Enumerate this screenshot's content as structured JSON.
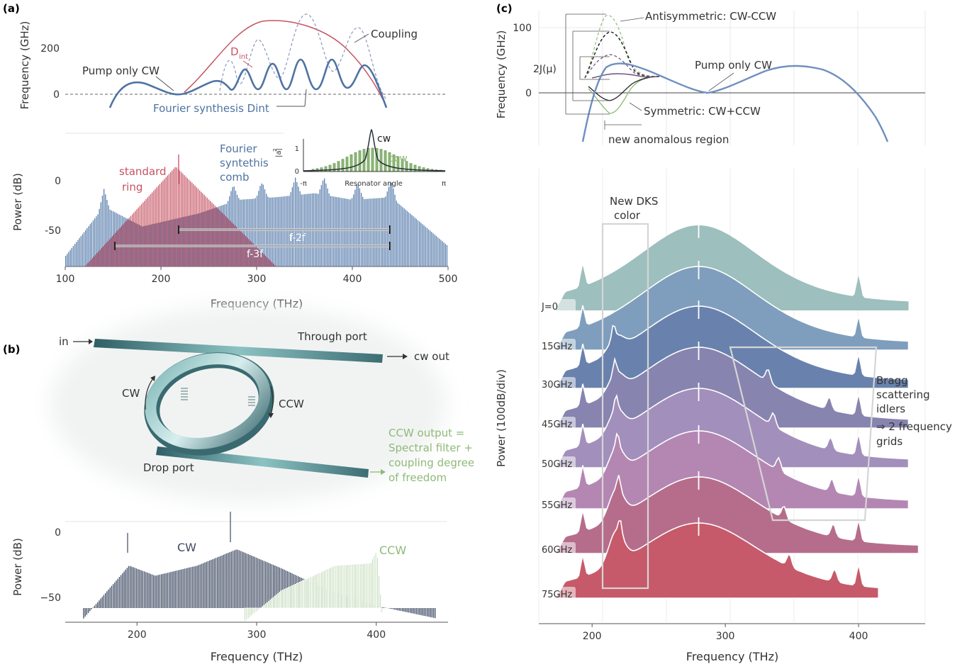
{
  "colors": {
    "blue": "#4f73a3",
    "red": "#c65362",
    "green": "#8fba78",
    "dark": "#3e4a62",
    "axis": "#555",
    "grid": "#e6e6e6",
    "frame": "#cfcfcf"
  },
  "panel_a": {
    "label": "(a)",
    "top": {
      "ylabel": "Frequency (GHz)",
      "yticks": [
        "200",
        "0"
      ],
      "dint_label": "D",
      "dint_sub": "int",
      "coupling_label": "Coupling",
      "pump_label": "Pump only CW",
      "fourier_label": "Fourier synthesis Dint"
    },
    "bottom": {
      "ylabel": "Power (dB)",
      "yticks": [
        "0",
        "-50"
      ],
      "standard_label": [
        "standard",
        "ring"
      ],
      "fourier_label": [
        "Fourier",
        "syntethis",
        "comb"
      ],
      "f2f_label": "f-2f",
      "f3f_label": "f-3f",
      "xlabel": "Frequency (THz)",
      "xticks": [
        "100",
        "200",
        "300",
        "400",
        "500"
      ],
      "inset": {
        "ylabel": "|a|",
        "ylabel_sup": "2",
        "yticks": [
          "1",
          "0"
        ],
        "xlabel": "Resonator angle",
        "xticks": [
          "-π",
          "π"
        ],
        "cw_label": "cw",
        "ccw_label": "ccw"
      }
    }
  },
  "panel_b": {
    "label": "(b)",
    "in_label": "in",
    "through_label": "Through port",
    "cwout_label": "cw out",
    "cw_label": "CW",
    "ccw_label": "CCW",
    "drop_label": "Drop port",
    "ccw_output": [
      "CCW output =",
      "Spectral filter +",
      "coupling degree",
      "of freedom"
    ],
    "chart": {
      "ylabel": "Power (dB)",
      "yticks": [
        "0",
        "−50"
      ],
      "cw_label": "CW",
      "ccw_label": "CCW",
      "xlabel": "Frequency (THz)",
      "xticks": [
        "200",
        "300",
        "400"
      ]
    }
  },
  "panel_c": {
    "label": "(c)",
    "top": {
      "ylabel": "Frequency (GHz)",
      "yticks": [
        "100",
        "0"
      ],
      "anti_label": "Antisymmetric: CW-CCW",
      "sym_label": "Symmetric: CW+CCW",
      "pump_label": "Pump only CW",
      "twoj_label": "2J(μ)",
      "anomalous_label": "new anomalous region"
    },
    "bottom": {
      "ylabel": "Power (100dB/div)",
      "new_dks": [
        "New DKS",
        "color"
      ],
      "bragg": [
        "Bragg",
        "scattering",
        "idlers",
        "⇒ 2 frequency",
        "grids"
      ],
      "xlabel": "Frequency (THz)",
      "xticks": [
        "200",
        "300",
        "400"
      ]
    }
  },
  "chart_data": [
    {
      "type": "line",
      "panel": "a-top",
      "ylabel": "Frequency (GHz)",
      "series": [
        {
          "name": "Pump only CW",
          "x": [
            145,
            165,
            190,
            215,
            240,
            265,
            285
          ],
          "y": [
            -40,
            40,
            35,
            0,
            25,
            80,
            120
          ]
        },
        {
          "name": "Fourier synthesis Dint",
          "x": [
            270,
            300,
            330,
            360,
            390,
            420,
            445
          ],
          "y": [
            40,
            80,
            110,
            130,
            120,
            80,
            -30
          ]
        },
        {
          "name": "Dint",
          "x": [
            260,
            300,
            330,
            360,
            390,
            420,
            445
          ],
          "y": [
            40,
            200,
            280,
            310,
            290,
            210,
            -30
          ]
        },
        {
          "name": "Coupling"
        }
      ]
    },
    {
      "type": "area",
      "panel": "a-bottom",
      "xlabel": "Frequency (THz)",
      "ylabel": "Power (dB)",
      "xlim": [
        100,
        500
      ],
      "ylim": [
        -80,
        20
      ],
      "series": [
        {
          "name": "standard ring",
          "x": [
            120,
            215,
            320
          ],
          "y": [
            -80,
            -5,
            -80
          ]
        },
        {
          "name": "Fourier syntethis comb",
          "x": [
            100,
            140,
            180,
            240,
            280,
            320,
            360,
            400,
            440,
            500
          ],
          "y": [
            -72,
            -35,
            -50,
            -40,
            -30,
            -28,
            -25,
            -30,
            -28,
            -65
          ]
        }
      ],
      "annotations": [
        {
          "text": "f-2f",
          "x": [
            215,
            440
          ]
        },
        {
          "text": "f-3f",
          "x": [
            145,
            440
          ]
        }
      ]
    },
    {
      "type": "line",
      "panel": "a-inset",
      "xlabel": "Resonator angle",
      "series": [
        {
          "name": "cw",
          "peak": 1.5
        },
        {
          "name": "ccw",
          "peak": 0.55
        }
      ]
    },
    {
      "type": "area",
      "panel": "b",
      "xlabel": "Frequency (THz)",
      "ylabel": "Power (dB)",
      "xlim": [
        140,
        460
      ],
      "ylim": [
        -65,
        15
      ],
      "series": [
        {
          "name": "CW",
          "x": [
            155,
            193,
            215,
            250,
            283,
            320,
            360,
            400,
            450
          ],
          "y": [
            -62,
            -20,
            -28,
            -20,
            -7,
            -22,
            -40,
            -52,
            -62
          ]
        },
        {
          "name": "CCW",
          "x": [
            290,
            320,
            365,
            395,
            400,
            405
          ],
          "y": [
            -64,
            -40,
            -20,
            -18,
            -8,
            -64
          ]
        }
      ]
    },
    {
      "type": "line",
      "panel": "c-top",
      "ylabel": "Frequency (GHz)",
      "series": [
        {
          "name": "Pump only CW",
          "x": [
            183,
            200,
            220,
            240,
            280,
            320,
            360,
            400,
            420
          ],
          "y": [
            -75,
            -10,
            25,
            30,
            0,
            25,
            40,
            10,
            -75
          ]
        },
        {
          "name": "Antisymmetric: CW-CCW",
          "peak": 118
        },
        {
          "name": "Symmetric: CW+CCW",
          "min": -30
        }
      ]
    },
    {
      "type": "area",
      "panel": "c-bottom",
      "xlabel": "Frequency (THz)",
      "ylabel": "Power (100dB/div)",
      "xlim": [
        160,
        450
      ],
      "series": [
        {
          "name": "J=0"
        },
        {
          "name": "15GHz"
        },
        {
          "name": "30GHz"
        },
        {
          "name": "45GHz"
        },
        {
          "name": "50GHz"
        },
        {
          "name": "55GHz"
        },
        {
          "name": "60GHz"
        },
        {
          "name": "75GHz"
        }
      ]
    }
  ]
}
